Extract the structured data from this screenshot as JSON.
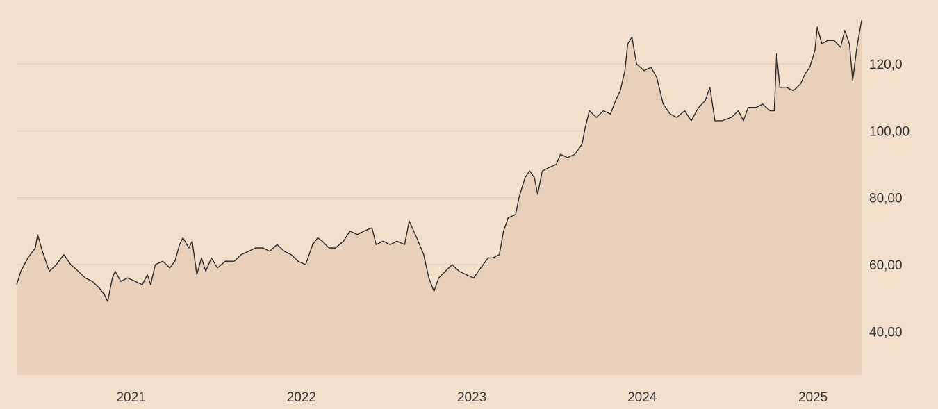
{
  "chart_data": {
    "type": "area",
    "title": "",
    "xlabel": "",
    "ylabel": "",
    "x_range": [
      "2020-05-01",
      "2025-04-15"
    ],
    "ylim": [
      27,
      136
    ],
    "y_ticks": [
      {
        "value": 40,
        "label": "40,00"
      },
      {
        "value": 60,
        "label": "60,00"
      },
      {
        "value": 80,
        "label": "80,00"
      },
      {
        "value": 100,
        "label": "100,00"
      },
      {
        "value": 120,
        "label": "120,0"
      }
    ],
    "x_ticks": [
      {
        "value": "2021-01-01",
        "label": "2021"
      },
      {
        "value": "2022-01-01",
        "label": "2022"
      },
      {
        "value": "2023-01-01",
        "label": "2023"
      },
      {
        "value": "2024-01-01",
        "label": "2024"
      },
      {
        "value": "2025-01-01",
        "label": "2025"
      }
    ],
    "grid": true,
    "colors": {
      "line": "#2b2b2b",
      "area": "#e8d0bb",
      "background": "#f2dfcc",
      "grid": "#e2c9b6"
    },
    "series": [
      {
        "name": "",
        "points": [
          [
            "2020-05-01",
            54
          ],
          [
            "2020-05-10",
            58
          ],
          [
            "2020-05-25",
            62
          ],
          [
            "2020-06-10",
            65
          ],
          [
            "2020-06-15",
            69
          ],
          [
            "2020-06-25",
            64
          ],
          [
            "2020-07-10",
            58
          ],
          [
            "2020-07-25",
            60
          ],
          [
            "2020-08-10",
            63
          ],
          [
            "2020-08-25",
            60
          ],
          [
            "2020-09-10",
            58
          ],
          [
            "2020-09-25",
            56
          ],
          [
            "2020-10-10",
            55
          ],
          [
            "2020-10-25",
            53
          ],
          [
            "2020-11-05",
            51
          ],
          [
            "2020-11-12",
            49
          ],
          [
            "2020-11-22",
            56
          ],
          [
            "2020-11-28",
            58
          ],
          [
            "2020-12-10",
            55
          ],
          [
            "2020-12-25",
            56
          ],
          [
            "2021-01-10",
            55
          ],
          [
            "2021-01-25",
            54
          ],
          [
            "2021-02-05",
            57
          ],
          [
            "2021-02-12",
            54
          ],
          [
            "2021-02-22",
            60
          ],
          [
            "2021-03-10",
            61
          ],
          [
            "2021-03-25",
            59
          ],
          [
            "2021-04-05",
            61
          ],
          [
            "2021-04-15",
            66
          ],
          [
            "2021-04-22",
            68
          ],
          [
            "2021-05-05",
            65
          ],
          [
            "2021-05-12",
            67
          ],
          [
            "2021-05-22",
            57
          ],
          [
            "2021-06-01",
            62
          ],
          [
            "2021-06-10",
            58
          ],
          [
            "2021-06-22",
            62
          ],
          [
            "2021-07-05",
            59
          ],
          [
            "2021-07-22",
            61
          ],
          [
            "2021-08-10",
            61
          ],
          [
            "2021-08-25",
            63
          ],
          [
            "2021-09-10",
            64
          ],
          [
            "2021-09-25",
            65
          ],
          [
            "2021-10-10",
            65
          ],
          [
            "2021-10-25",
            64
          ],
          [
            "2021-11-10",
            66
          ],
          [
            "2021-11-25",
            64
          ],
          [
            "2021-12-10",
            63
          ],
          [
            "2021-12-25",
            61
          ],
          [
            "2022-01-10",
            60
          ],
          [
            "2022-01-25",
            66
          ],
          [
            "2022-02-05",
            68
          ],
          [
            "2022-02-15",
            67
          ],
          [
            "2022-03-01",
            65
          ],
          [
            "2022-03-15",
            65
          ],
          [
            "2022-04-01",
            67
          ],
          [
            "2022-04-15",
            70
          ],
          [
            "2022-05-01",
            69
          ],
          [
            "2022-05-15",
            70
          ],
          [
            "2022-06-01",
            71
          ],
          [
            "2022-06-10",
            66
          ],
          [
            "2022-06-25",
            67
          ],
          [
            "2022-07-10",
            66
          ],
          [
            "2022-07-25",
            67
          ],
          [
            "2022-08-10",
            66
          ],
          [
            "2022-08-20",
            73
          ],
          [
            "2022-09-05",
            68
          ],
          [
            "2022-09-20",
            63
          ],
          [
            "2022-10-01",
            56
          ],
          [
            "2022-10-12",
            52
          ],
          [
            "2022-10-22",
            56
          ],
          [
            "2022-11-05",
            58
          ],
          [
            "2022-11-20",
            60
          ],
          [
            "2022-12-05",
            58
          ],
          [
            "2022-12-20",
            57
          ],
          [
            "2023-01-05",
            56
          ],
          [
            "2023-01-20",
            59
          ],
          [
            "2023-02-05",
            62
          ],
          [
            "2023-02-15",
            62
          ],
          [
            "2023-03-01",
            63
          ],
          [
            "2023-03-10",
            70
          ],
          [
            "2023-03-20",
            74
          ],
          [
            "2023-04-05",
            75
          ],
          [
            "2023-04-12",
            80
          ],
          [
            "2023-04-25",
            86
          ],
          [
            "2023-05-05",
            88
          ],
          [
            "2023-05-15",
            86
          ],
          [
            "2023-05-22",
            81
          ],
          [
            "2023-06-01",
            88
          ],
          [
            "2023-06-15",
            89
          ],
          [
            "2023-07-01",
            90
          ],
          [
            "2023-07-10",
            93
          ],
          [
            "2023-07-25",
            92
          ],
          [
            "2023-08-10",
            93
          ],
          [
            "2023-08-25",
            96
          ],
          [
            "2023-09-01",
            101
          ],
          [
            "2023-09-10",
            106
          ],
          [
            "2023-09-25",
            104
          ],
          [
            "2023-10-10",
            106
          ],
          [
            "2023-10-25",
            105
          ],
          [
            "2023-11-05",
            109
          ],
          [
            "2023-11-15",
            112
          ],
          [
            "2023-11-25",
            118
          ],
          [
            "2023-12-01",
            126
          ],
          [
            "2023-12-10",
            128
          ],
          [
            "2023-12-20",
            120
          ],
          [
            "2024-01-05",
            118
          ],
          [
            "2024-01-20",
            119
          ],
          [
            "2024-02-01",
            116
          ],
          [
            "2024-02-15",
            108
          ],
          [
            "2024-03-01",
            105
          ],
          [
            "2024-03-15",
            104
          ],
          [
            "2024-04-01",
            106
          ],
          [
            "2024-04-15",
            103
          ],
          [
            "2024-05-01",
            107
          ],
          [
            "2024-05-15",
            109
          ],
          [
            "2024-05-25",
            113
          ],
          [
            "2024-06-05",
            103
          ],
          [
            "2024-06-20",
            103
          ],
          [
            "2024-07-10",
            104
          ],
          [
            "2024-07-25",
            106
          ],
          [
            "2024-08-05",
            103
          ],
          [
            "2024-08-15",
            107
          ],
          [
            "2024-09-01",
            107
          ],
          [
            "2024-09-15",
            108
          ],
          [
            "2024-10-01",
            106
          ],
          [
            "2024-10-10",
            106
          ],
          [
            "2024-10-15",
            123
          ],
          [
            "2024-10-22",
            113
          ],
          [
            "2024-11-05",
            113
          ],
          [
            "2024-11-20",
            112
          ],
          [
            "2024-12-05",
            114
          ],
          [
            "2024-12-15",
            117
          ],
          [
            "2024-12-25",
            119
          ],
          [
            "2025-01-05",
            124
          ],
          [
            "2025-01-10",
            131
          ],
          [
            "2025-01-20",
            126
          ],
          [
            "2025-02-01",
            127
          ],
          [
            "2025-02-15",
            127
          ],
          [
            "2025-03-01",
            125
          ],
          [
            "2025-03-10",
            130
          ],
          [
            "2025-03-20",
            126
          ],
          [
            "2025-03-27",
            115
          ],
          [
            "2025-04-05",
            125
          ],
          [
            "2025-04-15",
            133
          ]
        ]
      }
    ]
  }
}
